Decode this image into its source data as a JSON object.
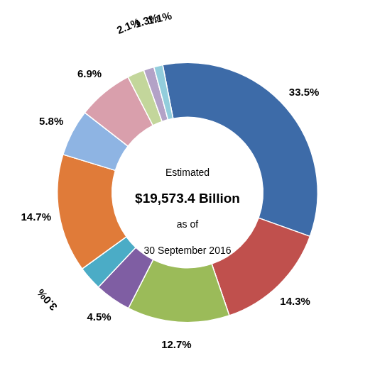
{
  "chart_data": {
    "type": "doughnut",
    "categories": [
      "33.5%",
      "14.3%",
      "12.7%",
      "4.5%",
      "3.0%",
      "14.7%",
      "5.8%",
      "6.9%",
      "2.1%",
      "1.3%",
      "1.1%"
    ],
    "values": [
      33.5,
      14.3,
      12.7,
      4.5,
      3.0,
      14.7,
      5.8,
      6.9,
      2.1,
      1.3,
      1.1
    ],
    "value_labels": [
      "33.5%",
      "14.3%",
      "12.7%",
      "4.5%",
      "3.0%",
      "14.7%",
      "5.8%",
      "6.9%",
      "2.1%",
      "1.3%",
      "1.1%"
    ],
    "colors": [
      "#3D6BA8",
      "#C0504D",
      "#9BBB59",
      "#7F5EA3",
      "#4BACC6",
      "#E07B39",
      "#8EB4E3",
      "#D99FAC",
      "#C3D69B",
      "#B3A2C7",
      "#92CDDC"
    ],
    "data_labels": true,
    "annotations": [
      "Estimated",
      "$19,573.4 Billion",
      "as of",
      "30 September 2016"
    ]
  }
}
